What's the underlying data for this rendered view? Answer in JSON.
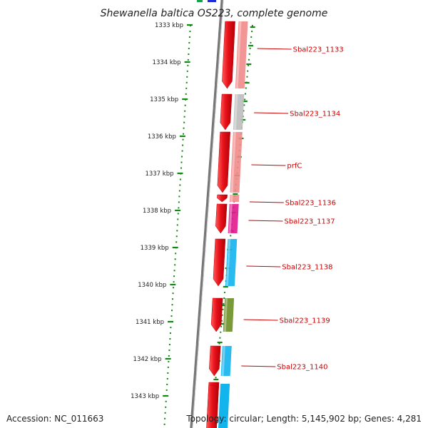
{
  "title": "Shewanella baltica OS223, complete genome",
  "footer": {
    "accession": "Accession: NC_011663",
    "topology": "Topology: circular; Length: 5,145,902 bp; Genes: 4,281"
  },
  "kbp_ticks": [
    "1333 kbp",
    "1334 kbp",
    "1335 kbp",
    "1336 kbp",
    "1337 kbp",
    "1338 kbp",
    "1339 kbp",
    "1340 kbp",
    "1341 kbp",
    "1342 kbp",
    "1343 kbp"
  ],
  "genes": [
    {
      "label": "Sbal223_1133",
      "cog_color": "#f08a8a"
    },
    {
      "label": "Sbal223_1134",
      "cog_color": "#bdbdbd"
    },
    {
      "label": "prfC",
      "cog_color": "#f08a8a"
    },
    {
      "label": "Sbal223_1136",
      "cog_color": "#f08a8a"
    },
    {
      "label": "Sbal223_1137",
      "cog_color": "#e0188c"
    },
    {
      "label": "Sbal223_1138",
      "cog_color": "#12b4ee"
    },
    {
      "label": "Sbal223_1139",
      "cog_color": "#6b8e23"
    },
    {
      "label": "Sbal223_1140",
      "cog_color": "#12b4ee"
    }
  ],
  "colors": {
    "gene_strand": "#e8121a",
    "backbone": "#777777",
    "ticks": "#118811",
    "label_text": "#cc0000"
  }
}
